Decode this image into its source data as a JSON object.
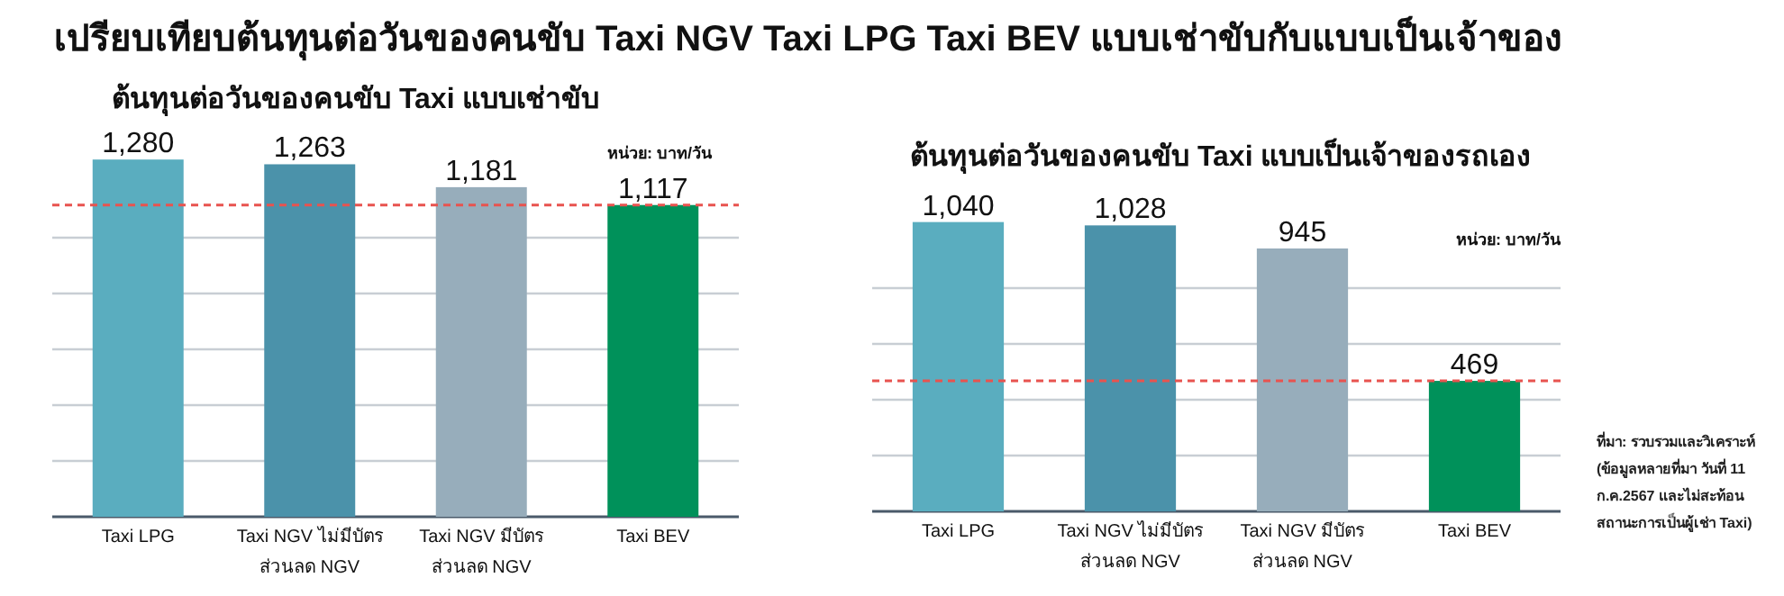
{
  "chart_data": [
    {
      "type": "bar",
      "title": "เปรียบเทียบต้นทุนต่อวันของคนขับ Taxi NGV Taxi LPG Taxi BEV แบบเช่าขับกับแบบเป็นเจ้าของ",
      "subtitle": "ต้นทุนต่อวันของคนขับ Taxi แบบเช่าขับ",
      "categories": [
        "Taxi LPG",
        "Taxi NGV ไม่มีบัตร\nส่วนลด NGV",
        "Taxi NGV มีบัตร\nส่วนลด NGV",
        "Taxi BEV"
      ],
      "values": [
        1280,
        1263,
        1181,
        1117
      ],
      "value_labels": [
        "1,280",
        "1,263",
        "1,181",
        "1,117"
      ],
      "colors": [
        "#5aadbf",
        "#4b92aa",
        "#97adbb",
        "#00915a"
      ],
      "grid": "y",
      "tick_labels": "x",
      "ref_lines": [
        {
          "axis": "y",
          "value": 1117,
          "color": "#e8534f",
          "line_style": "dashed"
        }
      ],
      "annotations": [
        "หน่วย: บาท/วัน"
      ]
    },
    {
      "type": "bar",
      "title": "ต้นทุนต่อวันของคนขับ Taxi แบบเป็นเจ้าของรถเอง",
      "categories": [
        "Taxi LPG",
        "Taxi NGV ไม่มีบัตร\nส่วนลด NGV",
        "Taxi NGV มีบัตร\nส่วนลด NGV",
        "Taxi BEV"
      ],
      "values": [
        1040,
        1028,
        945,
        469
      ],
      "value_labels": [
        "1,040",
        "1,028",
        "945",
        "469"
      ],
      "colors": [
        "#5aadbf",
        "#4b92aa",
        "#97adbb",
        "#00915a"
      ],
      "grid": "y",
      "tick_labels": "x",
      "ref_lines": [
        {
          "axis": "y",
          "value": 469,
          "color": "#e8534f",
          "line_style": "dashed"
        }
      ],
      "annotations": [
        "หน่วย: บาท/วัน",
        "ที่มา: รวบรวมและวิเคราะห์ (ข้อมูลหลายที่มา วันที่ 11 ก.ค.2567 และไม่สะท้อนสถานะการเป็นผู้เช่า Taxi)"
      ]
    }
  ]
}
